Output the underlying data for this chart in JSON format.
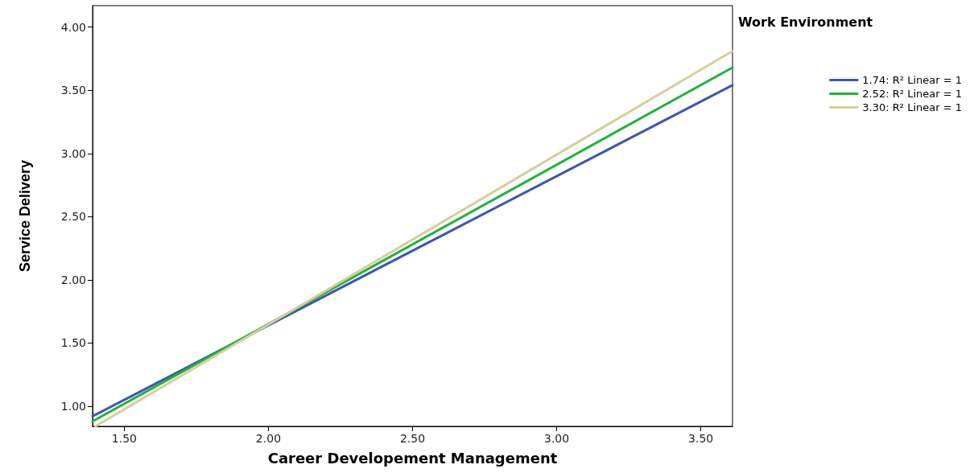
{
  "chart_data": {
    "type": "line",
    "xlabel": "Career Developement Management",
    "ylabel": "Service Delivery",
    "legend_title": "Work Environment",
    "legend": "right",
    "series": [
      {
        "name": "1.74: R² Linear = 1",
        "color": "#3f55b5",
        "x": [
          1.39,
          3.61
        ],
        "values": [
          0.92,
          3.54
        ]
      },
      {
        "name": "2.52: R² Linear = 1",
        "color": "#1fb33c",
        "x": [
          1.39,
          3.61
        ],
        "values": [
          0.88,
          3.68
        ]
      },
      {
        "name": "3.30: R² Linear = 1",
        "color": "#d5cf98",
        "x": [
          1.4,
          3.61
        ],
        "values": [
          0.84,
          3.81
        ]
      }
    ],
    "xlim": [
      1.39,
      3.61
    ],
    "xticks": [
      {
        "value": 1.5,
        "label": "1.50"
      },
      {
        "value": 2,
        "label": "2.00"
      },
      {
        "value": 2.5,
        "label": "2.50"
      },
      {
        "value": 3,
        "label": "3.00"
      },
      {
        "value": 3.5,
        "label": "3.50"
      }
    ],
    "ylim": [
      0.84,
      4.17
    ],
    "yticks": [
      {
        "value": 1,
        "label": "1.00"
      },
      {
        "value": 1.5,
        "label": "1.50"
      },
      {
        "value": 2,
        "label": "2.00"
      },
      {
        "value": 2.5,
        "label": "2.50"
      },
      {
        "value": 3,
        "label": "3.00"
      },
      {
        "value": 3.5,
        "label": "3.50"
      },
      {
        "value": 4,
        "label": "4.00"
      }
    ],
    "grid": false,
    "marker": "none",
    "line_style": "solid"
  }
}
